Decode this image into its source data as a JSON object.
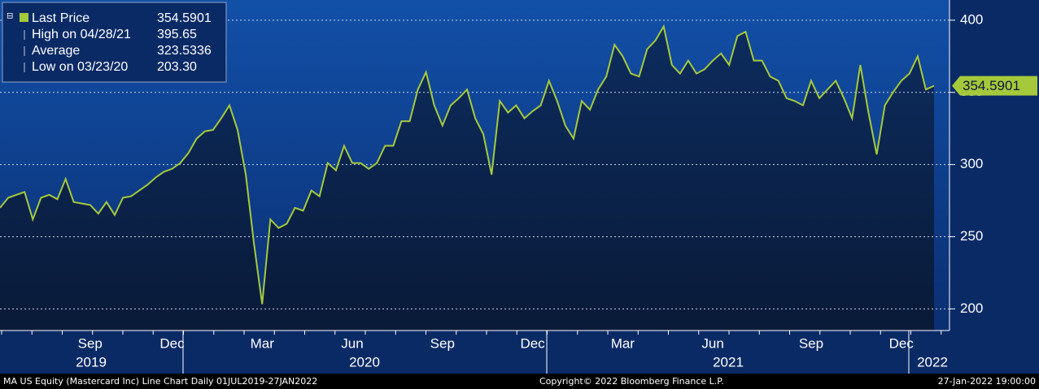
{
  "chart_data": {
    "type": "line",
    "title": "MA US Equity (Mastercard Inc) Line Chart  Daily 01JUL2019-27JAN2022",
    "copyright": "Copyright© 2022 Bloomberg Finance L.P.",
    "timestamp": "27-Jan-2022 19:00:00",
    "categories": [
      null,
      null,
      null,
      null,
      null,
      null,
      null,
      null,
      null,
      null,
      null,
      "Sep",
      null,
      null,
      null,
      null,
      null,
      null,
      null,
      null,
      null,
      "Dec",
      null,
      null,
      null,
      null,
      null,
      null,
      null,
      null,
      null,
      null,
      "Mar",
      null,
      null,
      null,
      null,
      null,
      null,
      null,
      null,
      null,
      null,
      "Jun",
      null,
      null,
      null,
      null,
      null,
      null,
      null,
      null,
      null,
      null,
      "Sep",
      null,
      null,
      null,
      null,
      null,
      null,
      null,
      null,
      null,
      null,
      "Dec",
      null,
      null,
      null,
      null,
      null,
      null,
      null,
      null,
      null,
      null,
      "Mar",
      null,
      null,
      null,
      null,
      null,
      null,
      null,
      null,
      null,
      null,
      "Jun",
      null,
      null,
      null,
      null,
      null,
      null,
      null,
      null,
      null,
      null,
      null,
      "Sep",
      null,
      null,
      null,
      null,
      null,
      null,
      null,
      null,
      null,
      null,
      "Dec",
      null,
      null,
      null,
      null
    ],
    "years": [
      "2019",
      "2020",
      "2021",
      "2022"
    ],
    "series": [
      {
        "name": "Last Price",
        "color": "#a6c93c",
        "values": [
          270,
          277,
          279,
          281,
          262,
          277,
          279,
          276,
          290,
          274,
          273,
          272,
          266,
          274,
          265,
          277,
          278,
          282,
          286,
          291,
          295,
          297,
          301,
          308,
          318,
          323,
          324,
          332,
          341,
          324,
          293,
          245,
          203.3,
          262,
          256,
          259,
          270,
          268,
          282,
          278,
          301,
          296,
          313,
          301,
          301,
          297,
          301,
          313,
          313,
          330,
          330,
          352,
          364,
          341,
          327,
          341,
          346,
          352,
          332,
          321,
          293,
          344,
          336,
          341,
          332,
          337,
          341,
          358,
          344,
          327,
          318,
          344,
          338,
          352,
          361,
          383,
          375,
          363,
          361,
          380,
          386,
          395.65,
          369,
          363,
          372,
          363,
          366,
          372,
          377,
          369,
          389,
          392,
          372,
          372,
          361,
          358,
          346,
          344,
          341,
          358,
          346,
          352,
          358,
          346,
          332,
          369,
          336,
          307,
          341,
          350,
          358,
          363,
          375,
          352,
          354.5901
        ]
      }
    ],
    "stats": [
      {
        "name": "Last Price",
        "value": 354.5901
      },
      {
        "name": "High on 04/28/21",
        "value": 395.65
      },
      {
        "name": "Average",
        "value": 323.5336
      },
      {
        "name": "Low on 03/23/20",
        "value": {
          "value": 203.3,
          "label": "203.30"
        }
      }
    ],
    "ylim": [
      185,
      414
    ],
    "yticks": [
      200,
      250,
      300,
      350,
      400
    ],
    "grid": true
  }
}
